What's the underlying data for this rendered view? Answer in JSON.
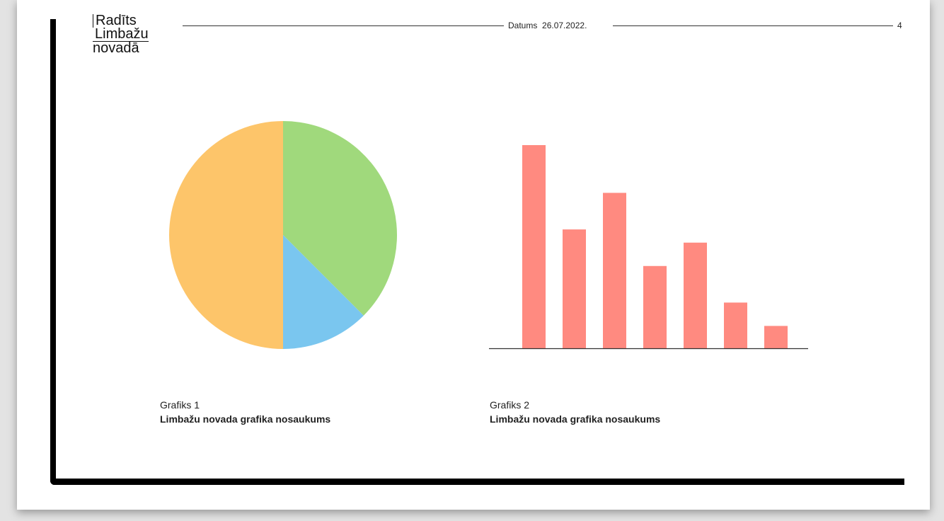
{
  "header": {
    "logo_lines": [
      "Radīts",
      "Limbažu",
      "novadā"
    ],
    "date_label": "Datums",
    "date_value": "26.07.2022.",
    "page_number": "4"
  },
  "captions": [
    {
      "label": "Grafiks 1",
      "title": "Limbažu novada grafika nosaukums"
    },
    {
      "label": "Grafiks 2",
      "title": "Limbažu novada grafika nosaukums"
    }
  ],
  "colors": {
    "frame": "#000000",
    "pie_green": "#a0d97c",
    "pie_blue": "#7ac6ef",
    "pie_orange": "#fdc56a",
    "bar": "#ff8a80"
  },
  "chart_data": [
    {
      "type": "pie",
      "values": [
        37.5,
        12.5,
        50
      ],
      "colors": [
        "#a0d97c",
        "#7ac6ef",
        "#fdc56a"
      ],
      "start": "top, clockwise",
      "title": "",
      "legend": false
    },
    {
      "type": "bar",
      "categories": [
        "",
        "",
        "",
        "",
        "",
        "",
        ""
      ],
      "values": [
        100,
        58.5,
        76.5,
        40.5,
        52,
        22.5,
        11
      ],
      "ylim": [
        0,
        100
      ],
      "color": "#ff8a80",
      "title": "",
      "xlabel": "",
      "ylabel": "",
      "grid": false,
      "legend": false
    }
  ]
}
